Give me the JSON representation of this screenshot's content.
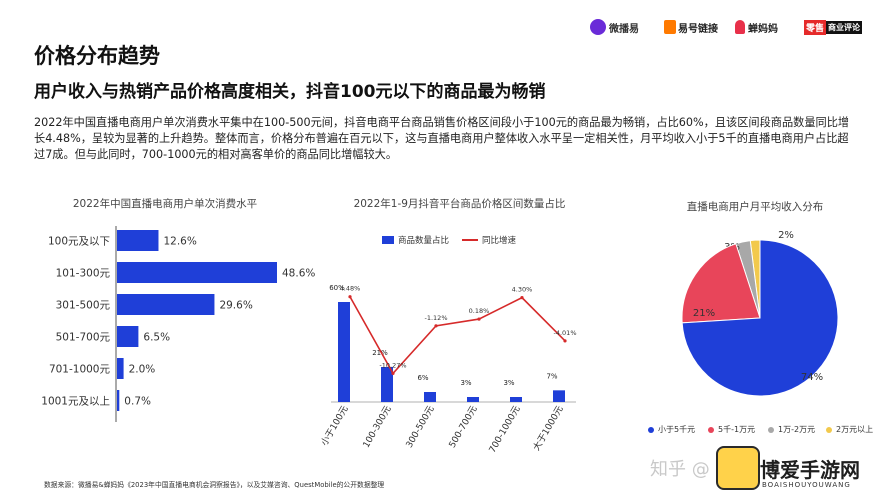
{
  "brand": {
    "logo1": "微播易",
    "logo2": "易号链接",
    "logo3": "蝉妈妈",
    "logo4a": "零售",
    "logo4b": "商业评论",
    "watermark_zhihu": "知乎 @",
    "watermark_site": "博爱手游网",
    "watermark_site_en": "BOAISHOUYOUWANG"
  },
  "header": {
    "title": "价格分布趋势",
    "subtitle": "用户收入与热销产品价格高度相关，抖音100元以下的商品最为畅销",
    "body": "2022年中国直播电商用户单次消费水平集中在100-500元间，抖音电商平台商品销售价格区间段小于100元的商品最为畅销，占比60%，且该区间段商品数量同比增长4.48%，呈较为显著的上升趋势。整体而言，价格分布普遍在百元以下，这与直播电商用户整体收入水平呈一定相关性，月平均收入小于5千的直播电商用户占比超过7成。但与此同时，700-1000元的相对高客单价的商品同比增幅较大。"
  },
  "footer": "数据来源：微播易&蝉妈妈《2023年中国直播电商机会洞察报告》，以及艾媒咨询、QuestMobile的公开数据整理",
  "chart_data": [
    {
      "type": "bar",
      "orientation": "horizontal",
      "title": "2022年中国直播电商用户单次消费水平",
      "categories": [
        "100元及以下",
        "101-300元",
        "301-500元",
        "501-700元",
        "701-1000元",
        "1001元及以上"
      ],
      "values": [
        12.6,
        48.6,
        29.6,
        6.5,
        2.0,
        0.7
      ],
      "value_labels": [
        "12.6%",
        "48.6%",
        "29.6%",
        "6.5%",
        "2.0%",
        "0.7%"
      ],
      "color": "#1f3fd8"
    },
    {
      "type": "bar",
      "title": "2022年1-9月抖音平台商品价格区间数量占比",
      "categories": [
        "小于100元",
        "100-300元",
        "300-500元",
        "500-700元",
        "700-1000元",
        "大于1000元"
      ],
      "series": [
        {
          "name": "商品数量占比",
          "type": "bar",
          "values": [
            60,
            21,
            6,
            3,
            3,
            7
          ],
          "labels": [
            "60%",
            "21%",
            "6%",
            "3%",
            "3%",
            "7%"
          ],
          "color": "#1f3fd8"
        },
        {
          "name": "同比增速",
          "type": "line",
          "values": [
            4.48,
            -10.27,
            -1.12,
            0.18,
            4.3,
            -4.01
          ],
          "labels": [
            "4.48%",
            "-10.27%",
            "-1.12%",
            "0.18%",
            "4.30%",
            "-4.01%"
          ],
          "color": "#d62a2a"
        }
      ]
    },
    {
      "type": "pie",
      "title": "直播电商用户月平均收入分布",
      "labels": [
        "小于5千元",
        "5千-1万元",
        "1万-2万元",
        "2万元以上"
      ],
      "values": [
        74,
        21,
        3,
        2
      ],
      "value_labels": [
        "74%",
        "21%",
        "3%",
        "2%"
      ],
      "colors": [
        "#1f3fd8",
        "#e8455a",
        "#a8a8a8",
        "#f2c94c"
      ]
    }
  ]
}
